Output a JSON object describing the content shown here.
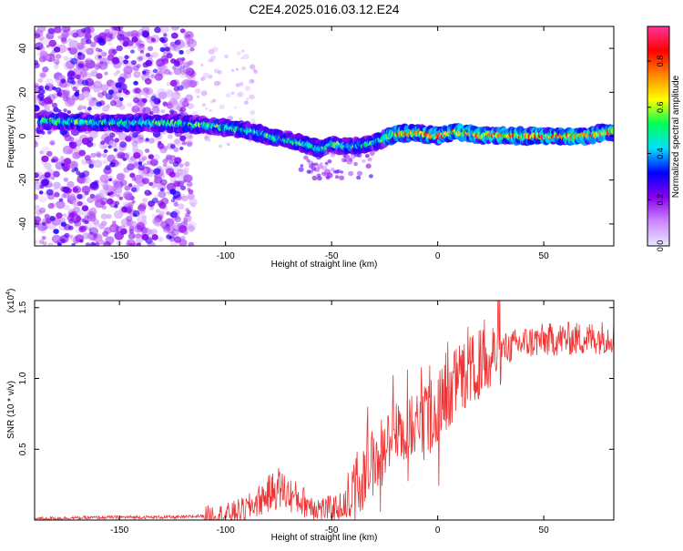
{
  "title": "C2E4.2025.016.03.12.E24",
  "chart_data": [
    {
      "type": "heatmap",
      "title": "C2E4.2025.016.03.12.E24",
      "xlabel": "Height of straight line (km)",
      "ylabel": "Frequency (Hz)",
      "xlim": [
        -190,
        83
      ],
      "ylim": [
        -50,
        50
      ],
      "xticks": [
        -150,
        -100,
        -50,
        0,
        50
      ],
      "yticks": [
        -40,
        -20,
        0,
        20,
        40
      ],
      "colorbar": {
        "label": "Normalized spectral amplitude",
        "range": [
          0.0,
          0.95
        ],
        "ticks": [
          0.0,
          0.2,
          0.4,
          0.6,
          0.8
        ],
        "colors": [
          "#e8e8ff",
          "#cc88ff",
          "#8800ee",
          "#0000ff",
          "#00e0ff",
          "#00ff55",
          "#ffff00",
          "#ff8800",
          "#ff0000",
          "#ff3399"
        ]
      },
      "ridge": {
        "x": [
          -185,
          -170,
          -150,
          -130,
          -110,
          -95,
          -85,
          -75,
          -65,
          -55,
          -50,
          -45,
          -40,
          -35,
          -30,
          -25,
          -20,
          -10,
          0,
          10,
          20,
          30,
          50,
          70,
          80
        ],
        "y": [
          7,
          6.5,
          6,
          6,
          5,
          3.5,
          1.5,
          -1,
          -3,
          -6,
          -3.5,
          -4.5,
          -4.5,
          -4,
          -3,
          -1,
          1,
          1.5,
          0,
          2,
          0.5,
          0.3,
          0,
          0,
          2
        ]
      }
    },
    {
      "type": "line",
      "xlabel": "Height of straight line (km)",
      "ylabel": "SNR (10 * v/v)",
      "scale_note": "(x10",
      "scale_exp": "4",
      "scale_close": ")",
      "xlim": [
        -190,
        83
      ],
      "ylim": [
        0,
        1.55
      ],
      "xticks": [
        -150,
        -100,
        -50,
        0,
        50
      ],
      "yticks": [
        0.5,
        1.0,
        1.5
      ],
      "ytick_labels": [
        "0.5",
        "1.0",
        "1.5"
      ],
      "color": "#ee3333",
      "trend": {
        "x": [
          -190,
          -150,
          -120,
          -100,
          -90,
          -80,
          -75,
          -70,
          -62,
          -55,
          -50,
          -45,
          -40,
          -35,
          -30,
          -25,
          -20,
          -15,
          -10,
          -5,
          0,
          5,
          10,
          15,
          20,
          25,
          30,
          40,
          50,
          60,
          70,
          83
        ],
        "y": [
          0.01,
          0.02,
          0.02,
          0.04,
          0.08,
          0.18,
          0.23,
          0.18,
          0.12,
          0.08,
          0.08,
          0.1,
          0.15,
          0.3,
          0.42,
          0.5,
          0.6,
          0.62,
          0.68,
          0.72,
          0.8,
          0.9,
          1.0,
          1.05,
          1.1,
          1.15,
          1.2,
          1.25,
          1.27,
          1.28,
          1.28,
          1.3
        ]
      }
    }
  ]
}
